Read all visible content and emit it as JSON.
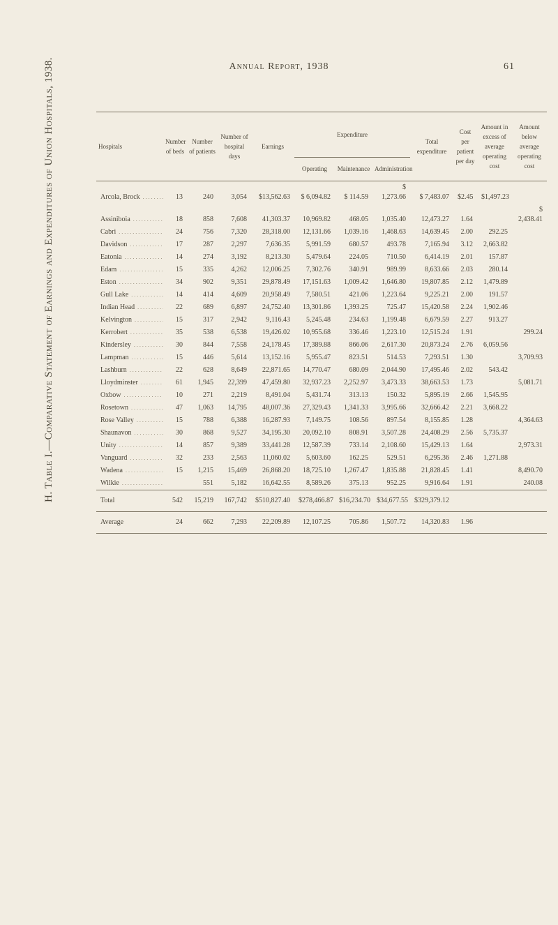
{
  "running_head": {
    "title": "Annual Report, 1938",
    "page": "61"
  },
  "side_caption": "H.  Table I.—Comparative Statement of Earnings and Expenditures of Union Hospitals, 1938.",
  "columns": {
    "hospitals": "Hospitals",
    "beds": "Number of beds",
    "patients": "Number of patients",
    "days": "Number of hospital days",
    "earnings": "Earnings",
    "expenditure_group": "Expenditure",
    "operating": "Operating",
    "maintenance": "Maintenance",
    "administration": "Administration",
    "total_exp": "Total expenditure",
    "cost_per_day": "Cost per patient per day",
    "excess": "Amount in excess of average operating cost",
    "below": "Amount below average operating cost"
  },
  "rows": [
    {
      "name": "Arcola, Brock",
      "beds": "13",
      "patients": "240",
      "days": "3,054",
      "earnings": "$13,562.63",
      "operating": "6,094.82",
      "maintenance": "114.59",
      "admin": "1,273.66",
      "total": "7,483.07",
      "cpd": "$2.45",
      "excess": "$1,497.23",
      "below": ""
    },
    {
      "name": "Assiniboia",
      "beds": "18",
      "patients": "858",
      "days": "7,608",
      "earnings": "41,303.37",
      "operating": "10,969.82",
      "maintenance": "468.05",
      "admin": "1,035.40",
      "total": "12,473.27",
      "cpd": "1.64",
      "excess": "",
      "below": "2,438.41"
    },
    {
      "name": "Cabri",
      "beds": "24",
      "patients": "756",
      "days": "7,320",
      "earnings": "28,318.00",
      "operating": "12,131.66",
      "maintenance": "1,039.16",
      "admin": "1,468.63",
      "total": "14,639.45",
      "cpd": "2.00",
      "excess": "292.25",
      "below": ""
    },
    {
      "name": "Davidson",
      "beds": "17",
      "patients": "287",
      "days": "2,297",
      "earnings": "7,636.35",
      "operating": "5,991.59",
      "maintenance": "680.57",
      "admin": "493.78",
      "total": "7,165.94",
      "cpd": "3.12",
      "excess": "2,663.82",
      "below": ""
    },
    {
      "name": "Eatonia",
      "beds": "14",
      "patients": "274",
      "days": "3,192",
      "earnings": "8,213.30",
      "operating": "5,479.64",
      "maintenance": "224.05",
      "admin": "710.50",
      "total": "6,414.19",
      "cpd": "2.01",
      "excess": "157.87",
      "below": ""
    },
    {
      "name": "Edam",
      "beds": "15",
      "patients": "335",
      "days": "4,262",
      "earnings": "12,006.25",
      "operating": "7,302.76",
      "maintenance": "340.91",
      "admin": "989.99",
      "total": "8,633.66",
      "cpd": "2.03",
      "excess": "280.14",
      "below": ""
    },
    {
      "name": "Eston",
      "beds": "34",
      "patients": "902",
      "days": "9,351",
      "earnings": "29,878.49",
      "operating": "17,151.63",
      "maintenance": "1,009.42",
      "admin": "1,646.80",
      "total": "19,807.85",
      "cpd": "2.12",
      "excess": "1,479.89",
      "below": ""
    },
    {
      "name": "Gull Lake",
      "beds": "14",
      "patients": "414",
      "days": "4,609",
      "earnings": "20,958.49",
      "operating": "7,580.51",
      "maintenance": "421.06",
      "admin": "1,223.64",
      "total": "9,225.21",
      "cpd": "2.00",
      "excess": "191.57",
      "below": ""
    },
    {
      "name": "Indian Head",
      "beds": "22",
      "patients": "689",
      "days": "6,897",
      "earnings": "24,752.40",
      "operating": "13,301.86",
      "maintenance": "1,393.25",
      "admin": "725.47",
      "total": "15,420.58",
      "cpd": "2.24",
      "excess": "1,902.46",
      "below": ""
    },
    {
      "name": "Kelvington",
      "beds": "15",
      "patients": "317",
      "days": "2,942",
      "earnings": "9,116.43",
      "operating": "5,245.48",
      "maintenance": "234.63",
      "admin": "1,199.48",
      "total": "6,679.59",
      "cpd": "2.27",
      "excess": "913.27",
      "below": ""
    },
    {
      "name": "Kerrobert",
      "beds": "35",
      "patients": "538",
      "days": "6,538",
      "earnings": "19,426.02",
      "operating": "10,955.68",
      "maintenance": "336.46",
      "admin": "1,223.10",
      "total": "12,515.24",
      "cpd": "1.91",
      "excess": "",
      "below": "299.24"
    },
    {
      "name": "Kindersley",
      "beds": "30",
      "patients": "844",
      "days": "7,558",
      "earnings": "24,178.45",
      "operating": "17,389.88",
      "maintenance": "866.06",
      "admin": "2,617.30",
      "total": "20,873.24",
      "cpd": "2.76",
      "excess": "6,059.56",
      "below": ""
    },
    {
      "name": "Lampman",
      "beds": "15",
      "patients": "446",
      "days": "5,614",
      "earnings": "13,152.16",
      "operating": "5,955.47",
      "maintenance": "823.51",
      "admin": "514.53",
      "total": "7,293.51",
      "cpd": "1.30",
      "excess": "",
      "below": "3,709.93"
    },
    {
      "name": "Lashburn",
      "beds": "22",
      "patients": "628",
      "days": "8,649",
      "earnings": "22,871.65",
      "operating": "14,770.47",
      "maintenance": "680.09",
      "admin": "2,044.90",
      "total": "17,495.46",
      "cpd": "2.02",
      "excess": "543.42",
      "below": ""
    },
    {
      "name": "Lloydminster",
      "beds": "61",
      "patients": "1,945",
      "days": "22,399",
      "earnings": "47,459.80",
      "operating": "32,937.23",
      "maintenance": "2,252.97",
      "admin": "3,473.33",
      "total": "38,663.53",
      "cpd": "1.73",
      "excess": "",
      "below": "5,081.71"
    },
    {
      "name": "Oxbow",
      "beds": "10",
      "patients": "271",
      "days": "2,219",
      "earnings": "8,491.04",
      "operating": "5,431.74",
      "maintenance": "313.13",
      "admin": "150.32",
      "total": "5,895.19",
      "cpd": "2.66",
      "excess": "1,545.95",
      "below": ""
    },
    {
      "name": "Rosetown",
      "beds": "47",
      "patients": "1,063",
      "days": "14,795",
      "earnings": "48,007.36",
      "operating": "27,329.43",
      "maintenance": "1,341.33",
      "admin": "3,995.66",
      "total": "32,666.42",
      "cpd": "2.21",
      "excess": "3,668.22",
      "below": ""
    },
    {
      "name": "Rose Valley",
      "beds": "15",
      "patients": "788",
      "days": "6,388",
      "earnings": "16,287.93",
      "operating": "7,149.75",
      "maintenance": "108.56",
      "admin": "897.54",
      "total": "8,155.85",
      "cpd": "1.28",
      "excess": "",
      "below": "4,364.63"
    },
    {
      "name": "Shaunavon",
      "beds": "30",
      "patients": "868",
      "days": "9,527",
      "earnings": "34,195.30",
      "operating": "20,092.10",
      "maintenance": "808.91",
      "admin": "3,507.28",
      "total": "24,408.29",
      "cpd": "2.56",
      "excess": "5,735.37",
      "below": ""
    },
    {
      "name": "Unity",
      "beds": "14",
      "patients": "857",
      "days": "9,389",
      "earnings": "33,441.28",
      "operating": "12,587.39",
      "maintenance": "733.14",
      "admin": "2,108.60",
      "total": "15,429.13",
      "cpd": "1.64",
      "excess": "",
      "below": "2,973.31"
    },
    {
      "name": "Vanguard",
      "beds": "32",
      "patients": "233",
      "days": "2,563",
      "earnings": "11,060.02",
      "operating": "5,603.60",
      "maintenance": "162.25",
      "admin": "529.51",
      "total": "6,295.36",
      "cpd": "2.46",
      "excess": "1,271.88",
      "below": ""
    },
    {
      "name": "Wadena",
      "beds": "15",
      "patients": "1,215",
      "days": "15,469",
      "earnings": "26,868.20",
      "operating": "18,725.10",
      "maintenance": "1,267.47",
      "admin": "1,835.88",
      "total": "21,828.45",
      "cpd": "1.41",
      "excess": "",
      "below": "8,490.70"
    },
    {
      "name": "Wilkie",
      "beds": "",
      "patients": "551",
      "days": "5,182",
      "earnings": "16,642.55",
      "operating": "8,589.26",
      "maintenance": "375.13",
      "admin": "952.25",
      "total": "9,916.64",
      "cpd": "1.91",
      "excess": "",
      "below": "240.08"
    }
  ],
  "totals": {
    "label": "Total",
    "beds": "542",
    "patients": "15,219",
    "days": "167,742",
    "earnings": "$510,827.40",
    "operating": "$278,466.87",
    "maintenance": "$16,234.70",
    "admin": "$34,677.55",
    "total": "$329,379.12",
    "cpd": "",
    "excess": "",
    "below": ""
  },
  "average": {
    "label": "Average",
    "beds": "24",
    "patients": "662",
    "days": "7,293",
    "earnings": "22,209.89",
    "operating": "12,107.25",
    "maintenance": "705.86",
    "admin": "1,507.72",
    "total": "14,320.83",
    "cpd": "1.96",
    "excess": "",
    "below": ""
  }
}
